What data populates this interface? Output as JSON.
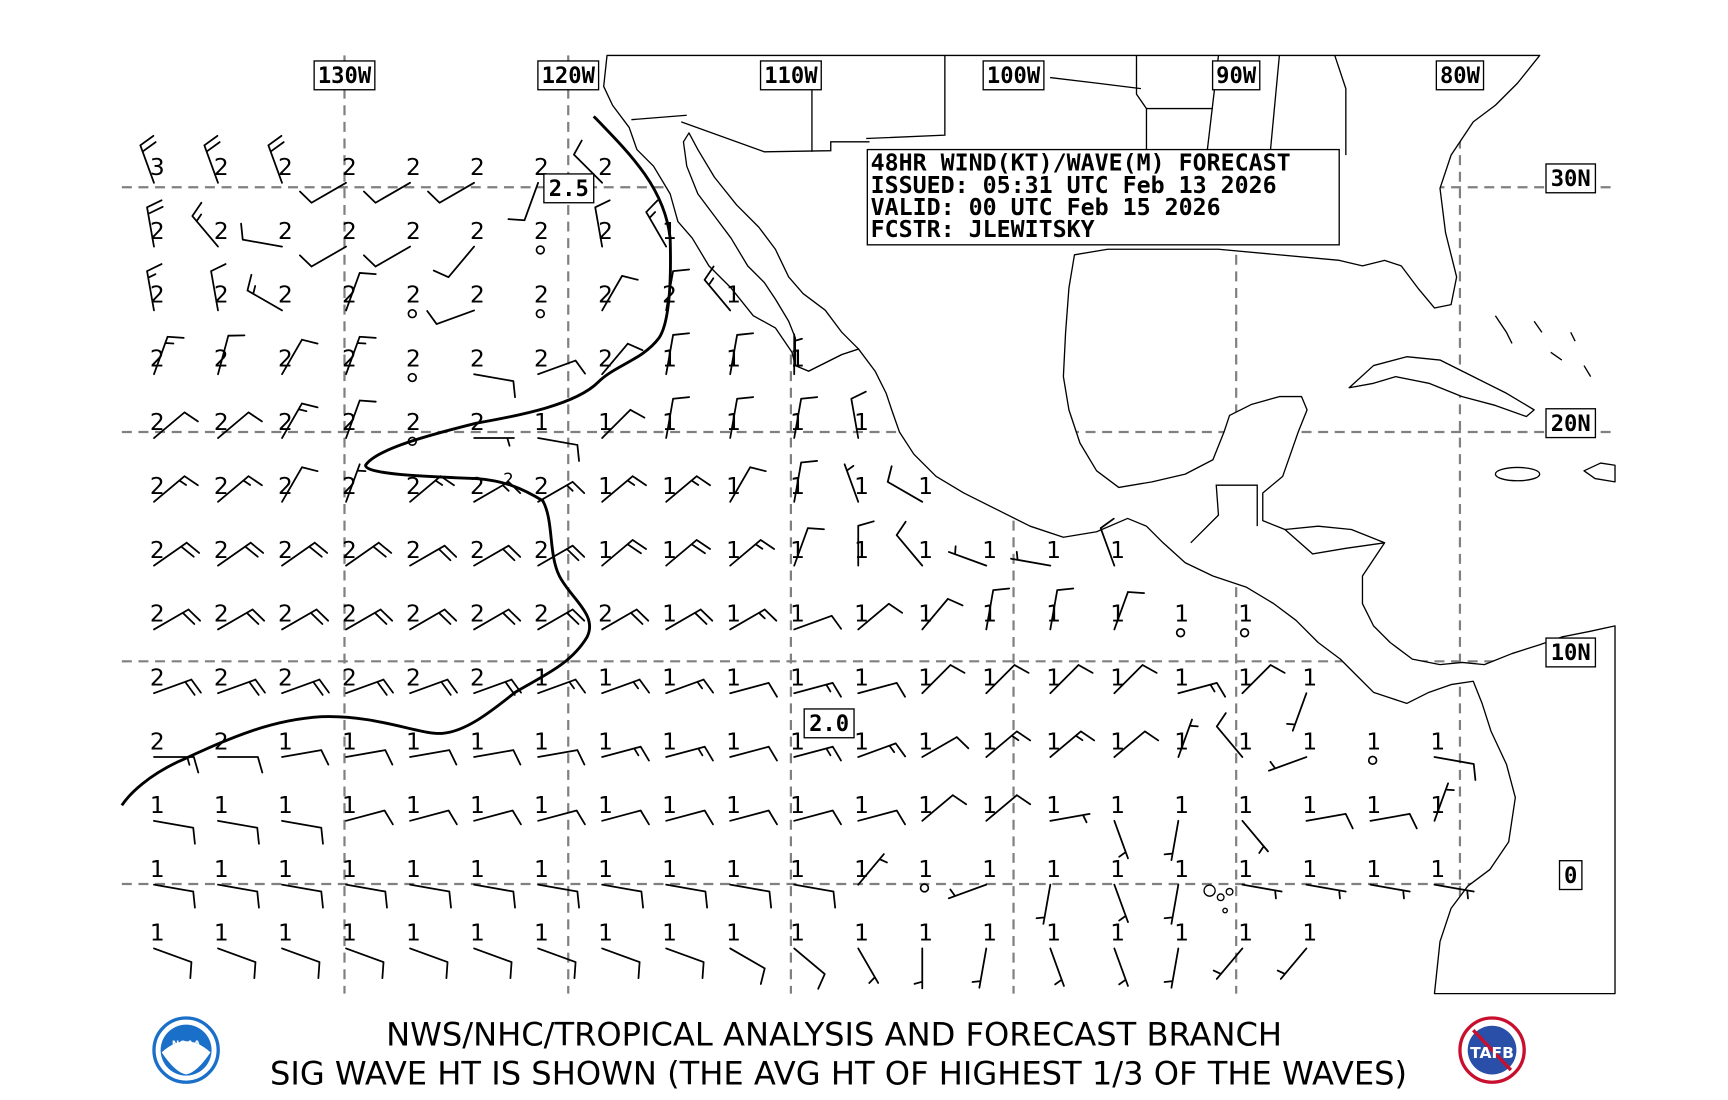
{
  "header": {
    "line1": "48HR WIND(KT)/WAVE(M) FORECAST",
    "line2": "ISSUED: 05:31 UTC Feb 13 2026",
    "line3": "VALID: 00 UTC Feb 15 2026",
    "line4": "FCSTR: JLEWITSKY"
  },
  "lon_labels": [
    "130W",
    "120W",
    "110W",
    "100W",
    "90W",
    "80W"
  ],
  "lat_labels": [
    "30N",
    "20N",
    "10N",
    "0"
  ],
  "contour_labels": {
    "upper": "2.5",
    "lower": "2.0",
    "small": "2"
  },
  "footer": {
    "line1": "NWS/NHC/TROPICAL ANALYSIS AND FORECAST BRANCH",
    "line2": "SIG WAVE HT IS SHOWN (THE AVG HT OF HIGHEST 1/3 OF THE WAVES)"
  },
  "logos": {
    "left": "NOAA",
    "right": "TAFB"
  },
  "colors": {
    "grid": "#808080",
    "ink": "#000000",
    "noaa_blue": "#1a6fc9",
    "tafb_red": "#c8102e"
  },
  "units": {
    "wind": "kt",
    "wave": "m"
  },
  "wave_heights_m": [
    [
      "3",
      "2",
      "2",
      "2",
      "2",
      "2",
      "2",
      "2"
    ],
    [
      "2",
      "2",
      "2",
      "2",
      "2",
      "2",
      "2",
      "2",
      "1"
    ],
    [
      "2",
      "2",
      "2",
      "2",
      "2",
      "2",
      "2",
      "2",
      "2",
      "1"
    ],
    [
      "2",
      "2",
      "2",
      "2",
      "2",
      "2",
      "2",
      "2",
      "1",
      "1",
      "1"
    ],
    [
      "2",
      "2",
      "2",
      "2",
      "2",
      "2",
      "1",
      "1",
      "1",
      "1",
      "1",
      "1"
    ],
    [
      "2",
      "2",
      "2",
      "2",
      "2",
      "2",
      "2",
      "1",
      "1",
      "1",
      "1",
      "1",
      "1"
    ],
    [
      "2",
      "2",
      "2",
      "2",
      "2",
      "2",
      "2",
      "1",
      "1",
      "1",
      "1",
      "1",
      "1",
      "1",
      "1",
      "1"
    ],
    [
      "2",
      "2",
      "2",
      "2",
      "2",
      "2",
      "2",
      "2",
      "1",
      "1",
      "1",
      "1",
      "1",
      "1",
      "1",
      "1",
      "1",
      "1"
    ],
    [
      "2",
      "2",
      "2",
      "2",
      "2",
      "2",
      "1",
      "1",
      "1",
      "1",
      "1",
      "1",
      "1",
      "1",
      "1",
      "1",
      "1",
      "1",
      "1"
    ],
    [
      "2",
      "2",
      "1",
      "1",
      "1",
      "1",
      "1",
      "1",
      "1",
      "1",
      "1",
      "1",
      "1",
      "1",
      "1",
      "1",
      "1",
      "1",
      "1",
      "1",
      "1"
    ],
    [
      "1",
      "1",
      "1",
      "1",
      "1",
      "1",
      "1",
      "1",
      "1",
      "1",
      "1",
      "1",
      "1",
      "1",
      "1",
      "1",
      "1",
      "1",
      "1",
      "1",
      "1"
    ],
    [
      "1",
      "1",
      "1",
      "1",
      "1",
      "1",
      "1",
      "1",
      "1",
      "1",
      "1",
      "1",
      "1",
      "1",
      "1",
      "1",
      "1",
      "1",
      "1",
      "1",
      "1"
    ],
    [
      "1",
      "1",
      "1",
      "1",
      "1",
      "1",
      "1",
      "1",
      "1",
      "1",
      "1",
      "1",
      "1",
      "1",
      "1",
      "1",
      "1",
      "1",
      "1"
    ]
  ],
  "wind_dir_speed_kt": [
    [
      "340/20",
      "340/20",
      "340/20",
      "240/10",
      "240/10",
      "240/10",
      "200/10",
      "315/10"
    ],
    [
      "350/20",
      "320/15",
      "280/10",
      "240/10",
      "240/10",
      "220/10",
      "C",
      "350/10",
      "330/15"
    ],
    [
      "350/15",
      "350/10",
      "300/15",
      "20/10",
      "C",
      "250/10",
      "C",
      "30/10",
      "10/10",
      "320/15"
    ],
    [
      "20/15",
      "15/10",
      "30/10",
      "20/15",
      "C",
      "100/10",
      "70/10",
      "40/10",
      "10/10",
      "10/10",
      "0/5"
    ],
    [
      "50/10",
      "50/10",
      "30/15",
      "20/10",
      "C",
      "90/5",
      "100/10",
      "45/10",
      "10/10",
      "10/10",
      "10/10",
      "350/10"
    ],
    [
      "50/15",
      "50/15",
      "30/10",
      "20/5",
      "50/15",
      "60/15",
      "60/15",
      "50/15",
      "50/15",
      "30/10",
      "10/10",
      "340/5",
      "300/10"
    ],
    [
      "55/20",
      "55/20",
      "55/20",
      "55/20",
      "60/20",
      "60/20",
      "60/20",
      "50/20",
      "50/20",
      "50/15",
      "20/10",
      "0/10",
      "320/10",
      "290/5",
      "280/5",
      "340/10"
    ],
    [
      "60/20",
      "60/20",
      "60/20",
      "60/20",
      "60/20",
      "60/20",
      "60/20",
      "60/20",
      "60/20",
      "60/15",
      "70/10",
      "50/10",
      "40/10",
      "10/10",
      "10/10",
      "20/10",
      "C",
      "C"
    ],
    [
      "70/20",
      "70/20",
      "70/20",
      "70/20",
      "70/20",
      "70/20",
      "70/15",
      "70/15",
      "70/15",
      "75/10",
      "75/15",
      "75/10",
      "45/10",
      "45/10",
      "45/10",
      "45/10",
      "75/15",
      "45/10",
      "200/5"
    ],
    [
      "90/15",
      "90/10",
      "80/10",
      "80/10",
      "80/10",
      "80/10",
      "80/10",
      "75/15",
      "75/15",
      "75/10",
      "75/15",
      "70/15",
      "60/10",
      "50/15",
      "50/15",
      "50/10",
      "20/5",
      "320/10",
      "250/5",
      "C",
      "100/10"
    ],
    [
      "100/10",
      "100/10",
      "100/10",
      "75/10",
      "75/10",
      "75/10",
      "75/10",
      "75/10",
      "75/10",
      "75/10",
      "75/10",
      "75/10",
      "50/10",
      "50/10",
      "80/5",
      "160/5",
      "190/5",
      "140/5",
      "80/10",
      "80/10",
      "20/5"
    ],
    [
      "100/10",
      "100/10",
      "100/10",
      "100/10",
      "100/10",
      "100/10",
      "100/10",
      "100/10",
      "100/10",
      "100/10",
      "100/10",
      "40/5",
      "C",
      "250/5",
      "190/5",
      "160/5",
      "190/5",
      "100/5",
      "100/5",
      "100/5",
      "100/5"
    ],
    [
      "110/10",
      "110/10",
      "110/10",
      "110/10",
      "110/10",
      "110/10",
      "110/10",
      "110/10",
      "110/10",
      "120/10",
      "130/10",
      "150/5",
      "180/5",
      "190/5",
      "160/5",
      "160/5",
      "190/5",
      "220/5",
      "220/5"
    ]
  ]
}
